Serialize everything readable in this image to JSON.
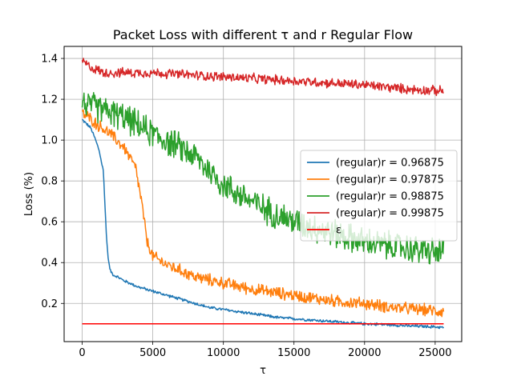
{
  "chart_data": {
    "type": "line",
    "title": "Packet Loss with different τ and r Regular Flow",
    "xlabel": "τ",
    "ylabel": "Loss (%)",
    "xlim": [
      -1280,
      26880
    ],
    "ylim": [
      0.013,
      1.459
    ],
    "xticks": [
      0,
      5000,
      10000,
      15000,
      20000,
      25000
    ],
    "yticks": [
      0.2,
      0.4,
      0.6,
      0.8,
      1.0,
      1.2,
      1.4
    ],
    "xtick_labels": [
      "0",
      "5000",
      "10000",
      "15000",
      "20000",
      "25000"
    ],
    "ytick_labels": [
      "0.2",
      "0.4",
      "0.6",
      "0.8",
      "1.0",
      "1.2",
      "1.4"
    ],
    "grid": true,
    "legend_position": "center-right",
    "series": [
      {
        "name": "(regular)r = 0.96875",
        "color": "#1f77b4",
        "noise": 0.006,
        "x": [
          0,
          300,
          600,
          900,
          1200,
          1400,
          1500,
          1600,
          1700,
          1800,
          1900,
          2000,
          2200,
          2500,
          3000,
          4000,
          5000,
          6000,
          7000,
          8000,
          9000,
          10000,
          11000,
          12000,
          13000,
          14000,
          15000,
          16000,
          17000,
          18000,
          19000,
          20000,
          21000,
          22000,
          23000,
          24000,
          25000,
          25600
        ],
        "y": [
          1.1,
          1.08,
          1.06,
          1.01,
          0.95,
          0.88,
          0.85,
          0.7,
          0.55,
          0.45,
          0.39,
          0.36,
          0.34,
          0.33,
          0.31,
          0.28,
          0.26,
          0.24,
          0.22,
          0.2,
          0.18,
          0.17,
          0.16,
          0.15,
          0.14,
          0.13,
          0.125,
          0.12,
          0.115,
          0.11,
          0.105,
          0.1,
          0.098,
          0.095,
          0.09,
          0.088,
          0.085,
          0.083
        ]
      },
      {
        "name": "(regular)r = 0.97875",
        "color": "#ff7f0e",
        "noise": 0.025,
        "x": [
          0,
          500,
          1000,
          2000,
          3000,
          3500,
          3800,
          4000,
          4200,
          4400,
          4600,
          5000,
          6000,
          7000,
          8000,
          10000,
          12000,
          14000,
          16000,
          18000,
          20000,
          22000,
          24000,
          25600
        ],
        "y": [
          1.13,
          1.11,
          1.08,
          1.03,
          0.96,
          0.9,
          0.86,
          0.78,
          0.7,
          0.6,
          0.5,
          0.43,
          0.39,
          0.36,
          0.33,
          0.3,
          0.27,
          0.25,
          0.23,
          0.21,
          0.2,
          0.18,
          0.17,
          0.16
        ]
      },
      {
        "name": "(regular)r = 0.98875",
        "color": "#2ca02c",
        "noise": 0.06,
        "x": [
          0,
          300,
          1000,
          3000,
          5000,
          7000,
          8000,
          9000,
          10000,
          11000,
          12000,
          13000,
          14000,
          15000,
          16000,
          17000,
          18000,
          19000,
          20000,
          21000,
          22000,
          23000,
          24000,
          25000,
          25600
        ],
        "y": [
          1.2,
          1.17,
          1.16,
          1.11,
          1.03,
          0.96,
          0.92,
          0.85,
          0.78,
          0.74,
          0.7,
          0.66,
          0.63,
          0.6,
          0.58,
          0.56,
          0.54,
          0.52,
          0.5,
          0.49,
          0.48,
          0.47,
          0.46,
          0.45,
          0.45
        ]
      },
      {
        "name": "(regular)r = 0.99875",
        "color": "#d62728",
        "noise": 0.02,
        "x": [
          0,
          500,
          1500,
          5000,
          10000,
          15000,
          20000,
          23000,
          25600
        ],
        "y": [
          1.39,
          1.36,
          1.33,
          1.33,
          1.31,
          1.29,
          1.27,
          1.25,
          1.24
        ]
      },
      {
        "name": "ε",
        "color": "#ff0000",
        "noise": 0,
        "x": [
          0,
          25600
        ],
        "y": [
          0.1,
          0.1
        ]
      }
    ]
  }
}
